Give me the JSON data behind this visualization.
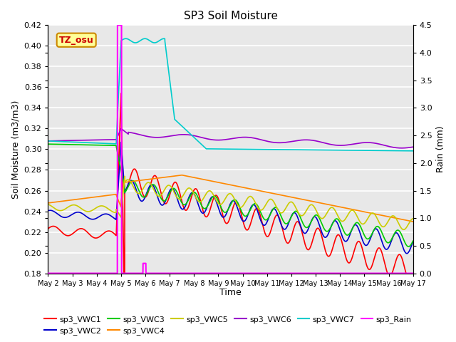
{
  "title": "SP3 Soil Moisture",
  "ylabel_left": "Soil Moisture (m3/m3)",
  "ylabel_right": "Rain (mm)",
  "xlabel": "Time",
  "ylim_left": [
    0.18,
    0.42
  ],
  "ylim_right": [
    0.0,
    4.5
  ],
  "xlim": [
    0,
    15
  ],
  "xtick_labels": [
    "May 2",
    "May 3",
    "May 4",
    "May 5",
    "May 6",
    "May 7",
    "May 8",
    "May 9",
    "May 10",
    "May 11",
    "May 12",
    "May 13",
    "May 14",
    "May 15",
    "May 16",
    "May 17"
  ],
  "annotation_text": "TZ_osu",
  "background_color": "#e8e8e8",
  "grid_color": "#ffffff",
  "series_colors": {
    "sp3_VWC1": "#ff0000",
    "sp3_VWC2": "#0000cc",
    "sp3_VWC3": "#00cc00",
    "sp3_VWC4": "#ff8800",
    "sp3_VWC5": "#cccc00",
    "sp3_VWC6": "#9900cc",
    "sp3_VWC7": "#00cccc",
    "sp3_Rain": "#ff00ff"
  },
  "legend_order": [
    "sp3_VWC1",
    "sp3_VWC2",
    "sp3_VWC3",
    "sp3_VWC4",
    "sp3_VWC5",
    "sp3_VWC6",
    "sp3_VWC7",
    "sp3_Rain"
  ]
}
